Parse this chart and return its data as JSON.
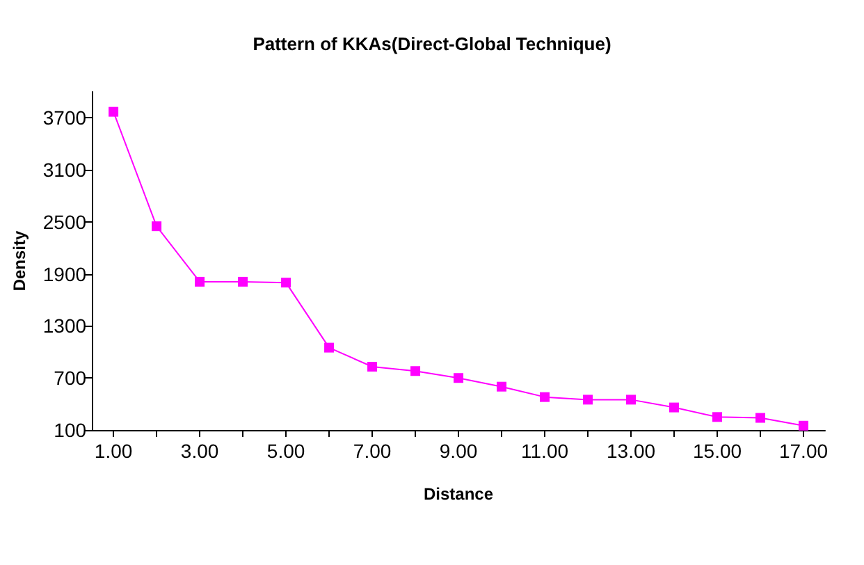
{
  "chart_data": {
    "type": "line",
    "title": "Pattern of KKAs(Direct-Global Technique)",
    "xlabel": "Distance",
    "ylabel": "Density",
    "categories": [
      "1.00",
      null,
      "3.00",
      null,
      "5.00",
      null,
      "7.00",
      null,
      "9.00",
      null,
      "11.00",
      null,
      "13.00",
      null,
      "15.00",
      null,
      "17.00"
    ],
    "series": [
      {
        "color": "#ff00ff",
        "values": [
          3770,
          2450,
          1810,
          1810,
          1800,
          1050,
          830,
          780,
          700,
          600,
          480,
          450,
          450,
          360,
          250,
          240,
          150
        ]
      }
    ],
    "ylim": [
      100,
      4000
    ],
    "yticks": [
      100,
      700,
      1300,
      1900,
      2500,
      3100,
      3700
    ],
    "grid": false,
    "marker": "square",
    "line_style": "solid"
  }
}
